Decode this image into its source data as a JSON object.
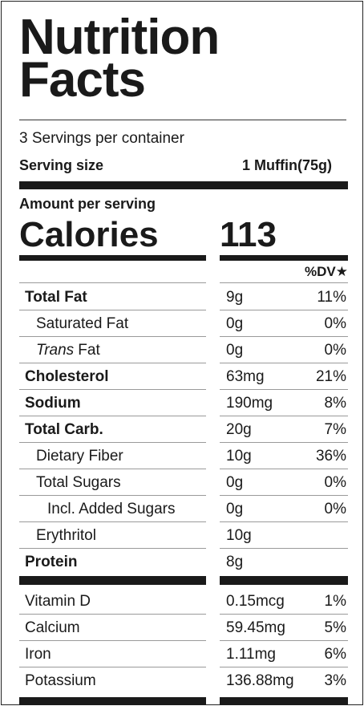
{
  "header": {
    "title": "Nutrition Facts",
    "servings": "3 Servings per container",
    "serving_size_label": "Serving size",
    "serving_size_value": "1 Muffin(75g)",
    "amount_per_serving": "Amount per serving",
    "calories_label": "Calories",
    "calories_value": "113",
    "dv_header": "%DV★"
  },
  "nutrients": [
    {
      "name": "Total Fat",
      "amount": "9g",
      "dv": "11%",
      "bold": true,
      "indent": 0
    },
    {
      "name": "Saturated Fat",
      "amount": "0g",
      "dv": "0%",
      "bold": false,
      "indent": 1
    },
    {
      "italic_prefix": "Trans",
      "name": " Fat",
      "amount": "0g",
      "dv": "0%",
      "bold": false,
      "indent": 1
    },
    {
      "name": "Cholesterol",
      "amount": "63mg",
      "dv": "21%",
      "bold": true,
      "indent": 0
    },
    {
      "name": "Sodium",
      "amount": "190mg",
      "dv": "8%",
      "bold": true,
      "indent": 0
    },
    {
      "name": "Total Carb.",
      "amount": "20g",
      "dv": "7%",
      "bold": true,
      "indent": 0
    },
    {
      "name": "Dietary Fiber",
      "amount": "10g",
      "dv": "36%",
      "bold": false,
      "indent": 1
    },
    {
      "name": "Total Sugars",
      "amount": "0g",
      "dv": "0%",
      "bold": false,
      "indent": 1
    },
    {
      "name": "Incl. Added Sugars",
      "amount": "0g",
      "dv": "0%",
      "bold": false,
      "indent": 2
    },
    {
      "name": "Erythritol",
      "amount": "10g",
      "bold": false,
      "indent": 1
    },
    {
      "name": "Protein",
      "amount": "8g",
      "bold": true,
      "indent": 0
    }
  ],
  "vitamins": [
    {
      "name": "Vitamin D",
      "amount": "0.15mcg",
      "dv": "1%"
    },
    {
      "name": "Calcium",
      "amount": "59.45mg",
      "dv": "5%"
    },
    {
      "name": "Iron",
      "amount": "1.11mg",
      "dv": "6%"
    },
    {
      "name": "Potassium",
      "amount": "136.88mg",
      "dv": "3%"
    }
  ]
}
